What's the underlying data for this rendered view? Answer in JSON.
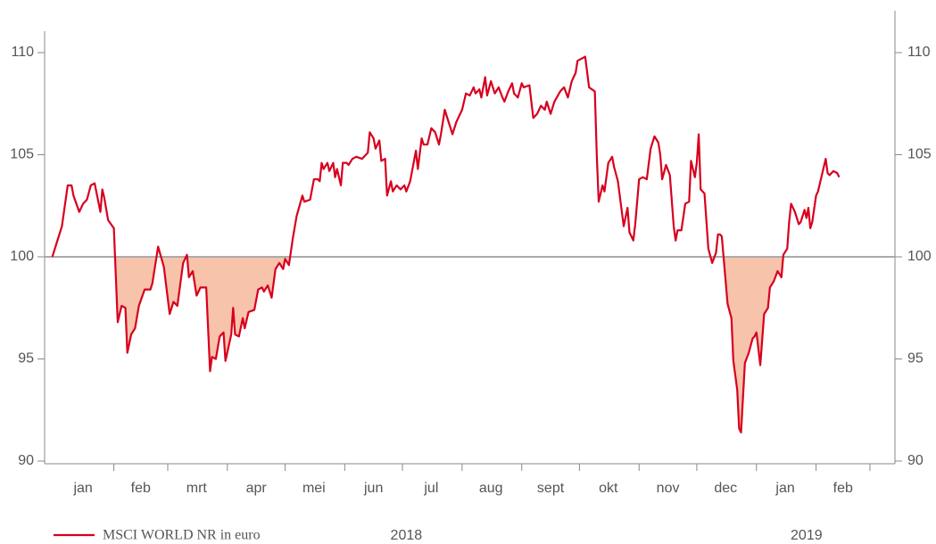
{
  "chart_data": {
    "type": "line",
    "xlim": [
      -5,
      437
    ],
    "ylim": [
      90,
      110
    ],
    "yticks": [
      90,
      95,
      100,
      105,
      110
    ],
    "y2lim": [
      90,
      110
    ],
    "y2ticks": [
      90,
      95,
      100,
      105,
      110
    ],
    "xticks": [
      {
        "value": 15,
        "label": "jan"
      },
      {
        "value": 45,
        "label": "feb"
      },
      {
        "value": 74,
        "label": "mrt"
      },
      {
        "value": 105,
        "label": "apr"
      },
      {
        "value": 135,
        "label": "mei"
      },
      {
        "value": 166,
        "label": "jun"
      },
      {
        "value": 196,
        "label": "jul"
      },
      {
        "value": 227,
        "label": "aug"
      },
      {
        "value": 258,
        "label": "sept"
      },
      {
        "value": 288,
        "label": "okt"
      },
      {
        "value": 319,
        "label": "nov"
      },
      {
        "value": 349,
        "label": "dec"
      },
      {
        "value": 380,
        "label": "jan"
      },
      {
        "value": 410,
        "label": "feb"
      }
    ],
    "x_minor_ticks": [
      31,
      59,
      90,
      120,
      151,
      181,
      212,
      243,
      273,
      304,
      334,
      365,
      396,
      424
    ],
    "annotations": [
      {
        "text": "2018",
        "x": 183
      },
      {
        "text": "2019",
        "x": 391
      }
    ],
    "reference_line": 100,
    "reference_color": "#aaaaaa",
    "fill_below_color": "#f7c3aa",
    "series": [
      {
        "name": "MSCI WORLD NR in euro",
        "color": "#d7001e",
        "x": [
          -1,
          4,
          7,
          9,
          10,
          13,
          15,
          17,
          19,
          21,
          24,
          25,
          26,
          28,
          31,
          33,
          35,
          37,
          38,
          40,
          42,
          44,
          47,
          50,
          51,
          54,
          57,
          60,
          62,
          64,
          67,
          69,
          70,
          72,
          74,
          76,
          79,
          81,
          82,
          84,
          86,
          88,
          89,
          92,
          93,
          94,
          96,
          98,
          99,
          101,
          104,
          106,
          108,
          109,
          111,
          113,
          115,
          117,
          119,
          120,
          122,
          124,
          126,
          129,
          130,
          133,
          135,
          137,
          138,
          139,
          140,
          142,
          143,
          145,
          146,
          147,
          149,
          150,
          152,
          153,
          155,
          157,
          160,
          162,
          163,
          164,
          166,
          167,
          169,
          170,
          172,
          173,
          175,
          176,
          178,
          180,
          182,
          183,
          185,
          188,
          189,
          191,
          192,
          194,
          196,
          198,
          200,
          201,
          203,
          205,
          207,
          209,
          212,
          214,
          216,
          218,
          219,
          221,
          222,
          224,
          225,
          227,
          229,
          231,
          233,
          234,
          236,
          238,
          239,
          241,
          243,
          244,
          247,
          249,
          251,
          252,
          253,
          255,
          256,
          258,
          260,
          263,
          265,
          267,
          269,
          271,
          272,
          276,
          278,
          281,
          282,
          283,
          285,
          286,
          288,
          290,
          291,
          293,
          296,
          298,
          299,
          301,
          302,
          304,
          306,
          308,
          310,
          312,
          314,
          315,
          316,
          318,
          320,
          322,
          323,
          324,
          326,
          328,
          330,
          331,
          333,
          334,
          335,
          336,
          338,
          340,
          342,
          344,
          345,
          346,
          347,
          350,
          352,
          353,
          355,
          356,
          357,
          359,
          361,
          363,
          364,
          365,
          367,
          369,
          371,
          372,
          374,
          376,
          378,
          379,
          381,
          382,
          383,
          385,
          387,
          388,
          390,
          391,
          392,
          393,
          394,
          396,
          397,
          399,
          401,
          402,
          403,
          405,
          407,
          408
        ],
        "values": [
          100.0,
          101.5,
          103.5,
          103.5,
          103.0,
          102.2,
          102.6,
          102.8,
          103.5,
          103.6,
          102.2,
          103.3,
          102.9,
          101.8,
          101.4,
          96.8,
          97.6,
          97.5,
          95.3,
          96.2,
          96.5,
          97.6,
          98.4,
          98.4,
          98.7,
          100.5,
          99.5,
          97.2,
          97.8,
          97.6,
          99.7,
          100.1,
          99.0,
          99.3,
          98.1,
          98.5,
          98.5,
          94.4,
          95.1,
          95.0,
          96.1,
          96.3,
          94.9,
          96.2,
          97.5,
          96.2,
          96.1,
          97.0,
          96.5,
          97.3,
          97.4,
          98.4,
          98.5,
          98.3,
          98.6,
          98.0,
          99.4,
          99.7,
          99.4,
          99.9,
          99.6,
          100.9,
          102.0,
          103.0,
          102.7,
          102.8,
          103.8,
          103.8,
          103.7,
          104.6,
          104.3,
          104.6,
          104.2,
          104.6,
          103.9,
          104.3,
          103.5,
          104.6,
          104.6,
          104.5,
          104.8,
          104.9,
          104.8,
          105.0,
          105.1,
          106.1,
          105.8,
          105.3,
          105.7,
          104.7,
          104.8,
          103.0,
          103.7,
          103.2,
          103.5,
          103.3,
          103.5,
          103.2,
          103.7,
          105.2,
          104.3,
          105.8,
          105.5,
          105.5,
          106.3,
          106.1,
          105.5,
          106.0,
          107.2,
          106.6,
          106.0,
          106.6,
          107.2,
          108.0,
          107.9,
          108.3,
          108.0,
          108.2,
          107.8,
          108.8,
          107.9,
          108.6,
          108.0,
          108.3,
          107.8,
          107.6,
          108.1,
          108.5,
          108.0,
          107.8,
          108.5,
          108.3,
          108.4,
          106.8,
          107.0,
          107.2,
          107.4,
          107.2,
          107.6,
          107.0,
          107.6,
          108.1,
          108.3,
          107.8,
          108.6,
          109.0,
          109.6,
          109.8,
          108.3,
          108.1,
          105.0,
          102.7,
          103.5,
          103.2,
          104.6,
          104.9,
          104.4,
          103.7,
          101.5,
          102.4,
          101.2,
          100.8,
          101.6,
          103.8,
          103.9,
          103.8,
          105.3,
          105.9,
          105.6,
          105.0,
          103.8,
          104.5,
          104.0,
          101.5,
          100.8,
          101.3,
          101.3,
          102.6,
          102.7,
          104.7,
          103.9,
          104.6,
          106.0,
          103.3,
          103.1,
          100.4,
          99.7,
          100.2,
          101.1,
          101.1,
          101.0,
          97.7,
          97.0,
          94.9,
          93.5,
          91.6,
          91.4,
          94.8,
          95.3,
          96.0,
          96.1,
          96.3,
          94.7,
          97.2,
          97.5,
          98.5,
          98.8,
          99.3,
          99.0,
          100.1,
          100.4,
          101.7,
          102.6,
          102.2,
          101.6,
          101.7,
          102.3,
          101.9,
          102.4,
          101.4,
          101.7,
          103.0,
          103.2,
          104.0,
          104.8,
          104.1,
          104.0,
          104.2,
          104.1,
          103.9
        ]
      }
    ]
  }
}
